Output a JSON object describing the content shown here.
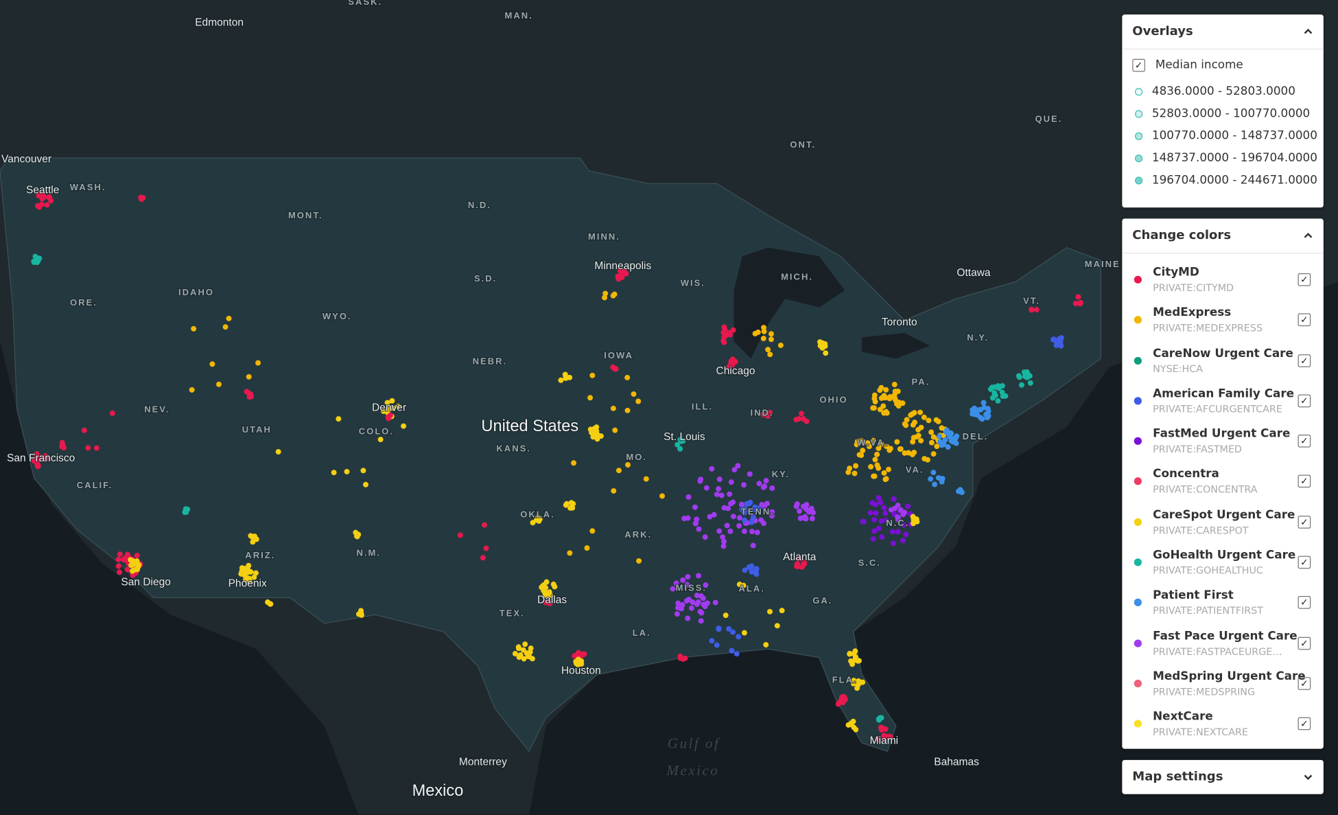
{
  "map_labels": [
    "SASK.",
    "MAN.",
    "Edmonton",
    "Vancouver",
    "Seattle",
    "WASH.",
    "MONT.",
    "N.D.",
    "MINN.",
    "QUE.",
    "ONT.",
    "Ottawa",
    "MAINE",
    "Toronto",
    "VT.",
    "N.Y.",
    "MICH.",
    "WIS.",
    "Minneapolis",
    "S.D.",
    "IDAHO",
    "ORE.",
    "WYO.",
    "IOWA",
    "NEBR.",
    "Chicago",
    "PA.",
    "OHIO",
    "ILL.",
    "IND.",
    "NEV.",
    "Denver",
    "United States",
    "UTAH",
    "COLO.",
    "St. Louis",
    "KANS.",
    "MO.",
    "W.VA.",
    "DEL.",
    "San Francisco",
    "VA.",
    "KY.",
    "CALIF.",
    "TENN.",
    "OKLA.",
    "N.C.",
    "ARK.",
    "ARIZ.",
    "N.M.",
    "Atlanta",
    "S.C.",
    "San Diego",
    "Phoenix",
    "MISS.",
    "ALA.",
    "GA.",
    "Dallas",
    "TEX.",
    "LA.",
    "Houston",
    "FLA.",
    "Gulf of",
    "Mexico",
    "Miami",
    "Bahamas",
    "Monterrey",
    "Mexico"
  ],
  "overlays": {
    "title": "Overlays",
    "layer": {
      "label": "Median income",
      "checked": true
    },
    "ranges": [
      "4836.0000 - 52803.0000",
      "52803.0000 - 100770.0000",
      "100770.0000 - 148737.0000",
      "148737.0000 - 196704.0000",
      "196704.0000 - 244671.0000"
    ],
    "range_color": "#3fbfb5"
  },
  "change_colors": {
    "title": "Change colors",
    "items": [
      {
        "name": "CityMD",
        "ticker": "PRIVATE:CITYMD",
        "color": "#e8194f",
        "checked": true
      },
      {
        "name": "MedExpress",
        "ticker": "PRIVATE:MEDEXPRESS",
        "color": "#f2b705",
        "checked": true
      },
      {
        "name": "CareNow Urgent Care",
        "ticker": "NYSE:HCA",
        "color": "#0f9d7a",
        "checked": true
      },
      {
        "name": "American Family Care",
        "ticker": "PRIVATE:AFCURGENTCARE",
        "color": "#3f5de8",
        "checked": true
      },
      {
        "name": "FastMed Urgent Care",
        "ticker": "PRIVATE:FASTMED",
        "color": "#7a10d6",
        "checked": true
      },
      {
        "name": "Concentra",
        "ticker": "PRIVATE:CONCENTRA",
        "color": "#f03c64",
        "checked": true
      },
      {
        "name": "CareSpot Urgent Care",
        "ticker": "PRIVATE:CARESPOT",
        "color": "#f5cf12",
        "checked": true
      },
      {
        "name": "GoHealth Urgent Care",
        "ticker": "PRIVATE:GOHEALTHUC",
        "color": "#18b5a0",
        "checked": true
      },
      {
        "name": "Patient First",
        "ticker": "PRIVATE:PATIENTFIRST",
        "color": "#3b8fe8",
        "checked": true
      },
      {
        "name": "Fast Pace Urgent Care",
        "ticker": "PRIVATE:FASTPACEURGE…",
        "color": "#a23bf0",
        "checked": true
      },
      {
        "name": "MedSpring Urgent Care",
        "ticker": "PRIVATE:MEDSPRING",
        "color": "#f0607a",
        "checked": true
      },
      {
        "name": "NextCare",
        "ticker": "PRIVATE:NEXTCARE",
        "color": "#f5e02a",
        "checked": true
      }
    ]
  },
  "map_settings": {
    "title": "Map settings"
  }
}
